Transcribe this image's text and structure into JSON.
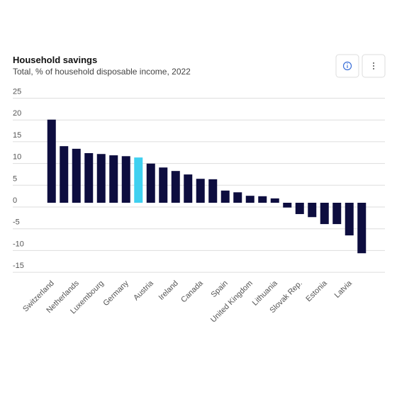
{
  "chart_data": {
    "type": "bar",
    "title": "Household savings",
    "subtitle": "Total, % of household disposable income, 2022",
    "categories": [
      "Switzerland",
      null,
      "Netherlands",
      null,
      "Luxembourg",
      null,
      "Germany",
      null,
      "Austria",
      null,
      "Ireland",
      null,
      "Canada",
      null,
      "Spain",
      null,
      "United Kingdom",
      null,
      "Lithuania",
      null,
      "Slovak Rep.",
      null,
      "Estonia",
      null,
      "Latvia",
      null
    ],
    "values": [
      19.1,
      13.0,
      12.4,
      11.4,
      11.2,
      10.9,
      10.7,
      10.4,
      9.0,
      8.1,
      7.3,
      6.5,
      5.5,
      5.4,
      2.8,
      2.4,
      1.6,
      1.5,
      1.0,
      -1.1,
      -2.6,
      -3.3,
      -4.9,
      -4.9,
      -7.5,
      -11.6
    ],
    "color": "#0d0d3f",
    "highlight_color": "#3fd0f0",
    "highlight_index": 7,
    "ylim": [
      -17,
      27
    ],
    "yticks": [
      -15,
      -10,
      -5,
      0,
      5,
      10,
      15,
      20,
      25
    ],
    "grid": true
  }
}
